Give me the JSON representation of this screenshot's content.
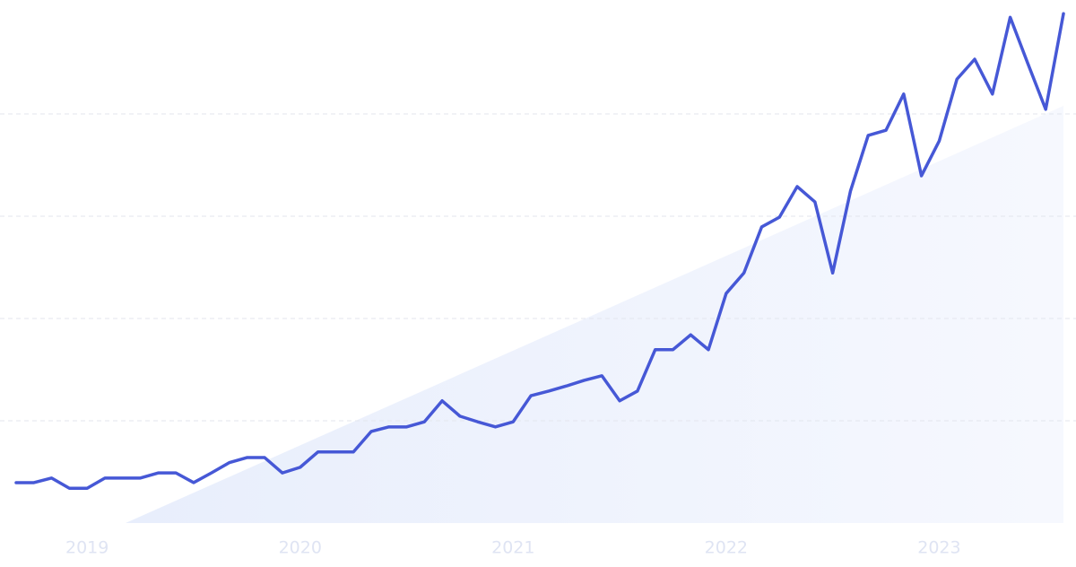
{
  "chart_data": {
    "type": "line",
    "categories": [
      null,
      null,
      null,
      null,
      "2019",
      null,
      null,
      null,
      null,
      null,
      null,
      null,
      null,
      null,
      null,
      null,
      "2020",
      null,
      null,
      null,
      null,
      null,
      null,
      null,
      null,
      null,
      null,
      null,
      "2021",
      null,
      null,
      null,
      null,
      null,
      null,
      null,
      null,
      null,
      null,
      null,
      "2022",
      null,
      null,
      null,
      null,
      null,
      null,
      null,
      null,
      null,
      null,
      null,
      "2023",
      null,
      null,
      null,
      null,
      null,
      null,
      null
    ],
    "series": [
      {
        "color": "#4658d6",
        "values": [
          7.9,
          7.9,
          8.8,
          6.8,
          6.8,
          8.8,
          8.8,
          8.8,
          9.8,
          9.8,
          7.9,
          9.8,
          11.8,
          12.8,
          12.8,
          9.8,
          10.9,
          13.9,
          13.9,
          13.9,
          17.9,
          18.8,
          18.8,
          19.8,
          23.9,
          20.9,
          19.8,
          18.8,
          19.8,
          24.9,
          25.8,
          26.8,
          27.9,
          28.8,
          23.9,
          25.8,
          33.9,
          33.9,
          36.8,
          33.9,
          44.9,
          48.9,
          57.9,
          59.8,
          65.8,
          62.8,
          48.9,
          64.9,
          75.8,
          76.8,
          83.9,
          67.9,
          74.7,
          86.8,
          90.7,
          83.9,
          98.9,
          89.8,
          80.9,
          99.6
        ]
      }
    ],
    "ylim": [
      0,
      100
    ],
    "yticks": [
      20,
      40,
      60,
      80
    ],
    "grid": true
  }
}
